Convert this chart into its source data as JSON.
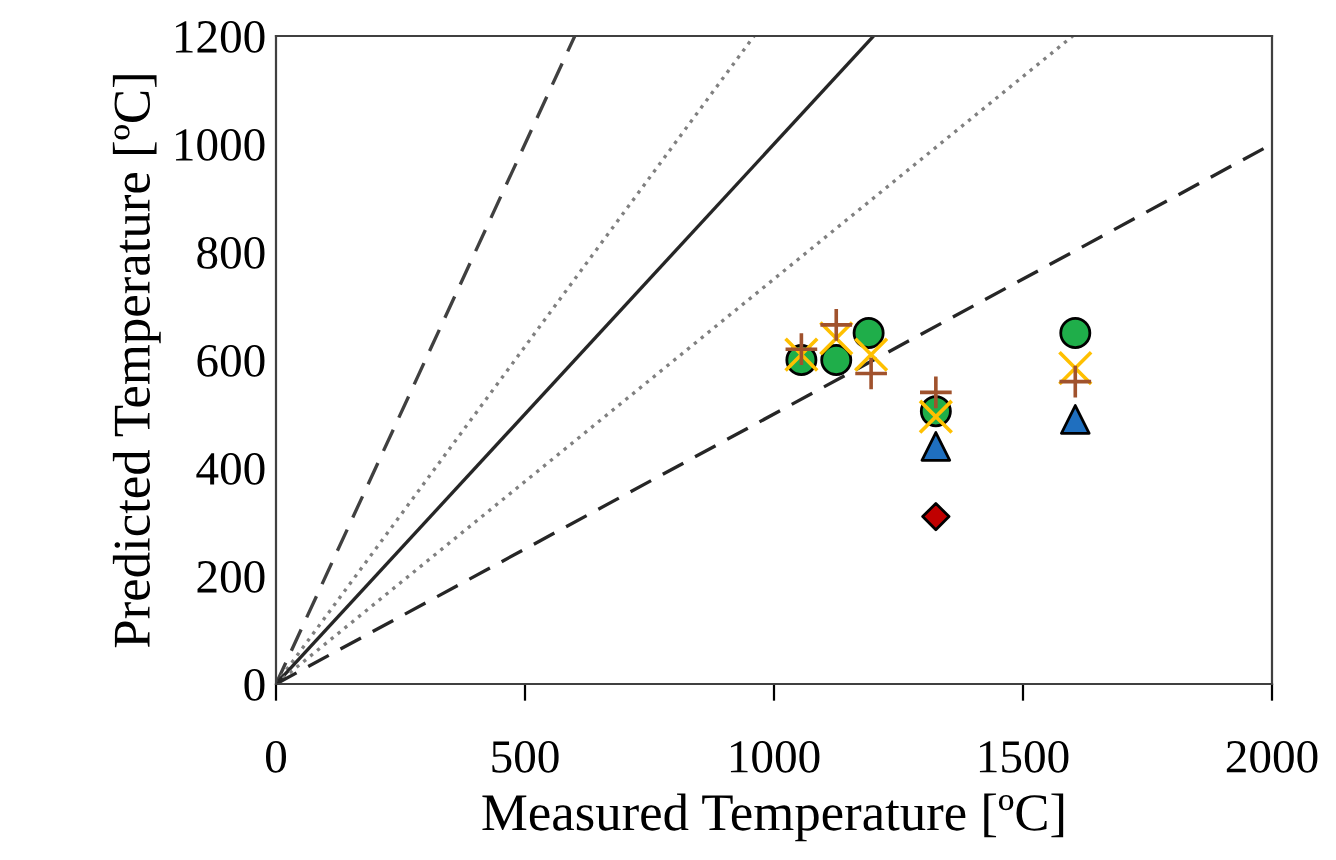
{
  "chart_data": {
    "type": "scatter",
    "xlabel": "Measured Temperature [ºC]",
    "ylabel": "Predicted Temperature [ºC]",
    "xlim": [
      0,
      2000
    ],
    "ylim": [
      0,
      1200
    ],
    "xticks": [
      0,
      500,
      1000,
      1500,
      2000
    ],
    "yticks": [
      0,
      200,
      400,
      600,
      800,
      1000,
      1200
    ],
    "grid": false,
    "legend": false,
    "series": [
      {
        "type": "line",
        "x": [
          0,
          600
        ],
        "values": [
          0,
          1200
        ],
        "color": "#404040",
        "line_style": "dashed",
        "marker": "none"
      },
      {
        "type": "line",
        "x": [
          0,
          960
        ],
        "values": [
          0,
          1200
        ],
        "color": "#808080",
        "line_style": "dotted",
        "marker": "none"
      },
      {
        "type": "line",
        "x": [
          0,
          1200
        ],
        "values": [
          0,
          1200
        ],
        "color": "#262626",
        "line_style": "solid",
        "marker": "none"
      },
      {
        "type": "line",
        "x": [
          0,
          1600
        ],
        "values": [
          0,
          1200
        ],
        "color": "#808080",
        "line_style": "dotted",
        "marker": "none"
      },
      {
        "type": "line",
        "x": [
          0,
          2000
        ],
        "values": [
          0,
          1000
        ],
        "color": "#262626",
        "line_style": "dashed",
        "marker": "none"
      },
      {
        "x": [
          1055,
          1125,
          1190,
          1325,
          1605
        ],
        "values": [
          600,
          600,
          650,
          505,
          650
        ],
        "color": "#1fae4a",
        "marker": "circle"
      },
      {
        "x": [
          1055,
          1125,
          1195,
          1325,
          1605
        ],
        "values": [
          610,
          640,
          610,
          495,
          585
        ],
        "color": "#ffc000",
        "marker": "cross"
      },
      {
        "x": [
          1055,
          1125,
          1195,
          1325,
          1605
        ],
        "values": [
          620,
          665,
          575,
          540,
          560
        ],
        "color": "#a0522d",
        "marker": "plus"
      },
      {
        "x": [
          1325,
          1605
        ],
        "values": [
          440,
          490
        ],
        "color": "#1f6fbf",
        "marker": "triangle"
      },
      {
        "x": [
          1325
        ],
        "values": [
          310
        ],
        "color": "#c00000",
        "marker": "diamond"
      }
    ]
  }
}
